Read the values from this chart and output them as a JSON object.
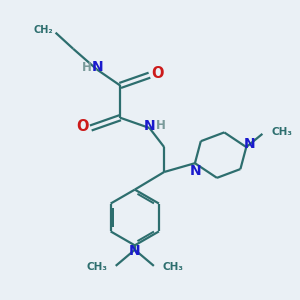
{
  "background_color": "#eaf0f5",
  "bond_color": "#2d6e6e",
  "n_color": "#1a1acc",
  "o_color": "#cc1a1a",
  "h_color": "#7a9a9a",
  "line_width": 1.6,
  "figsize": [
    3.0,
    3.0
  ],
  "dpi": 100,
  "xlim": [
    0,
    10
  ],
  "ylim": [
    0,
    10
  ]
}
